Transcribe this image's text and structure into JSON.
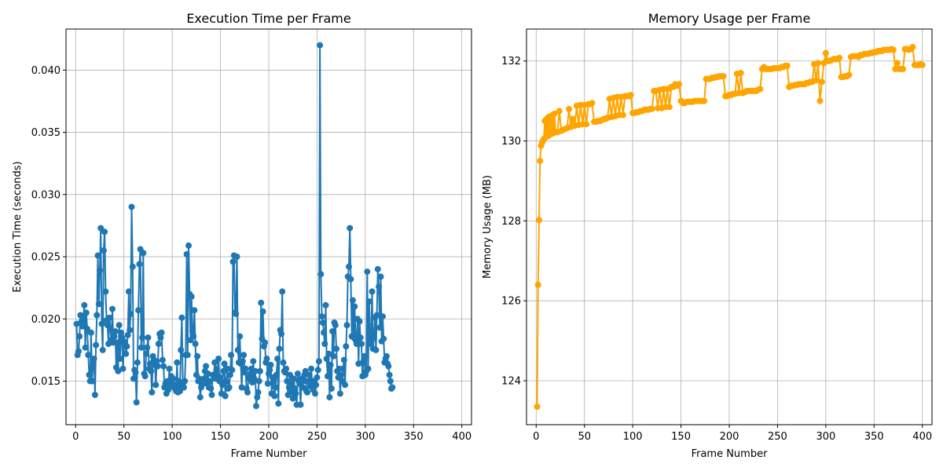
{
  "chart_data": [
    {
      "type": "line",
      "title": "Execution Time per Frame",
      "xlabel": "Frame Number",
      "ylabel": "Execution Time (seconds)",
      "xlim": [
        -10,
        410
      ],
      "ylim": [
        0.0115,
        0.0433
      ],
      "xticks": [
        0,
        50,
        100,
        150,
        200,
        250,
        300,
        350,
        400
      ],
      "yticks": [
        0.015,
        0.02,
        0.025,
        0.03,
        0.035,
        0.04
      ],
      "ytick_labels": [
        "0.015",
        "0.020",
        "0.025",
        "0.030",
        "0.035",
        "0.040"
      ],
      "grid": true,
      "marker": "circle",
      "color": "#1f77b4",
      "x_start": 1,
      "y": [
        0.0196,
        0.0171,
        0.0174,
        0.0186,
        0.0203,
        0.0198,
        0.0194,
        0.0201,
        0.0211,
        0.0177,
        0.0205,
        0.0192,
        0.0171,
        0.0155,
        0.015,
        0.0189,
        0.015,
        0.0165,
        0.0168,
        0.0139,
        0.0179,
        0.0203,
        0.0251,
        0.0212,
        0.0239,
        0.0273,
        0.0196,
        0.0175,
        0.0255,
        0.027,
        0.0222,
        0.0199,
        0.0195,
        0.018,
        0.0201,
        0.0192,
        0.0183,
        0.0208,
        0.0181,
        0.0186,
        0.019,
        0.0161,
        0.0181,
        0.0158,
        0.0195,
        0.0168,
        0.0189,
        0.0185,
        0.016,
        0.0182,
        0.018,
        0.0172,
        0.0178,
        0.0187,
        0.0222,
        0.0191,
        0.0204,
        0.029,
        0.0242,
        0.0152,
        0.0159,
        0.0157,
        0.0133,
        0.0165,
        0.0207,
        0.0244,
        0.0256,
        0.0177,
        0.0185,
        0.0253,
        0.0156,
        0.0154,
        0.0172,
        0.0177,
        0.0185,
        0.016,
        0.0164,
        0.0158,
        0.0141,
        0.017,
        0.0167,
        0.0163,
        0.0147,
        0.0166,
        0.0162,
        0.018,
        0.0188,
        0.0185,
        0.0189,
        0.0167,
        0.0162,
        0.0145,
        0.0148,
        0.014,
        0.015,
        0.0143,
        0.016,
        0.0146,
        0.0154,
        0.0148,
        0.0152,
        0.0145,
        0.0147,
        0.0142,
        0.0165,
        0.0141,
        0.015,
        0.0142,
        0.0175,
        0.0201,
        0.0147,
        0.0145,
        0.015,
        0.0171,
        0.0252,
        0.0171,
        0.0259,
        0.022,
        0.0183,
        0.0218,
        0.019,
        0.0186,
        0.0207,
        0.018,
        0.0155,
        0.017,
        0.015,
        0.0152,
        0.0137,
        0.0145,
        0.015,
        0.0148,
        0.0152,
        0.0158,
        0.0162,
        0.0148,
        0.0156,
        0.0145,
        0.015,
        0.0144,
        0.0139,
        0.0155,
        0.0154,
        0.0165,
        0.0152,
        0.016,
        0.0155,
        0.0168,
        0.015,
        0.0153,
        0.014,
        0.0147,
        0.0158,
        0.0164,
        0.0138,
        0.015,
        0.016,
        0.0144,
        0.0145,
        0.0155,
        0.0171,
        0.0159,
        0.0246,
        0.0251,
        0.0205,
        0.0204,
        0.025,
        0.0175,
        0.0165,
        0.0186,
        0.0164,
        0.0145,
        0.0166,
        0.0171,
        0.0157,
        0.016,
        0.0144,
        0.0141,
        0.0153,
        0.0152,
        0.0156,
        0.016,
        0.0149,
        0.0166,
        0.0152,
        0.0158,
        0.013,
        0.0137,
        0.0141,
        0.015,
        0.0158,
        0.0213,
        0.0184,
        0.0206,
        0.0178,
        0.0181,
        0.0165,
        0.0168,
        0.0148,
        0.0156,
        0.0159,
        0.0163,
        0.014,
        0.0153,
        0.015,
        0.0138,
        0.0145,
        0.0155,
        0.0168,
        0.0132,
        0.0176,
        0.0191,
        0.0188,
        0.0222,
        0.0165,
        0.0158,
        0.0157,
        0.016,
        0.015,
        0.0139,
        0.0145,
        0.0155,
        0.0141,
        0.0148,
        0.0136,
        0.0152,
        0.0144,
        0.014,
        0.0131,
        0.0156,
        0.015,
        0.0148,
        0.0131,
        0.0152,
        0.0145,
        0.015,
        0.0155,
        0.0158,
        0.0142,
        0.0141,
        0.015,
        0.0155,
        0.0146,
        0.016,
        0.0148,
        0.0143,
        0.015,
        0.014,
        0.0147,
        0.0153,
        0.0159,
        0.0166,
        0.042,
        0.0236,
        0.0202,
        0.0197,
        0.0189,
        0.018,
        0.0211,
        0.0168,
        0.0154,
        0.0172,
        0.0137,
        0.0163,
        0.0144,
        0.019,
        0.017,
        0.0197,
        0.0195,
        0.0176,
        0.0158,
        0.0153,
        0.016,
        0.014,
        0.0155,
        0.015,
        0.016,
        0.0167,
        0.0147,
        0.0178,
        0.0195,
        0.0234,
        0.0242,
        0.0273,
        0.0232,
        0.0186,
        0.0215,
        0.0185,
        0.021,
        0.0183,
        0.018,
        0.02,
        0.0164,
        0.0198,
        0.0185,
        0.018,
        0.0154,
        0.0166,
        0.017,
        0.0155,
        0.0158,
        0.0238,
        0.016,
        0.0214,
        0.018,
        0.0182,
        0.0222,
        0.0176,
        0.0185,
        0.0201,
        0.0175,
        0.0203,
        0.024,
        0.0226,
        0.0193,
        0.0234,
        0.0182,
        0.0202,
        0.0184,
        0.0165,
        0.0168,
        0.017,
        0.0164,
        0.0162,
        0.0155,
        0.015,
        0.0144,
        0.0145
      ]
    },
    {
      "type": "line",
      "title": "Memory Usage per Frame",
      "xlabel": "Frame Number",
      "ylabel": "Memory Usage (MB)",
      "xlim": [
        -10,
        410
      ],
      "ylim": [
        122.9,
        132.8
      ],
      "xticks": [
        0,
        50,
        100,
        150,
        200,
        250,
        300,
        350,
        400
      ],
      "yticks": [
        124,
        126,
        128,
        130,
        132
      ],
      "ytick_labels": [
        "124",
        "126",
        "128",
        "130",
        "132"
      ],
      "grid": true,
      "marker": "circle",
      "color": "#ffa500",
      "points": [
        [
          1,
          123.35
        ],
        [
          2,
          126.4
        ],
        [
          3,
          128.02
        ],
        [
          4,
          129.5
        ],
        [
          5,
          129.88
        ],
        [
          6,
          129.95
        ],
        [
          7,
          130.0
        ],
        [
          8,
          130.05
        ],
        [
          9,
          130.5
        ],
        [
          10,
          130.1
        ],
        [
          11,
          130.55
        ],
        [
          12,
          130.12
        ],
        [
          13,
          130.6
        ],
        [
          14,
          130.15
        ],
        [
          15,
          130.62
        ],
        [
          16,
          130.18
        ],
        [
          17,
          130.65
        ],
        [
          18,
          130.2
        ],
        [
          19,
          130.68
        ],
        [
          20,
          130.22
        ],
        [
          22,
          130.22
        ],
        [
          24,
          130.75
        ],
        [
          26,
          130.25
        ],
        [
          28,
          130.28
        ],
        [
          30,
          130.3
        ],
        [
          32,
          130.32
        ],
        [
          34,
          130.8
        ],
        [
          36,
          130.35
        ],
        [
          38,
          130.55
        ],
        [
          40,
          130.38
        ],
        [
          42,
          130.88
        ],
        [
          44,
          130.4
        ],
        [
          46,
          130.9
        ],
        [
          48,
          130.42
        ],
        [
          50,
          130.9
        ],
        [
          52,
          130.42
        ],
        [
          54,
          130.92
        ],
        [
          56,
          130.92
        ],
        [
          58,
          130.95
        ],
        [
          60,
          130.48
        ],
        [
          62,
          130.48
        ],
        [
          64,
          130.5
        ],
        [
          66,
          130.5
        ],
        [
          68,
          130.52
        ],
        [
          70,
          130.55
        ],
        [
          72,
          130.55
        ],
        [
          74,
          130.58
        ],
        [
          76,
          131.05
        ],
        [
          78,
          130.6
        ],
        [
          80,
          131.08
        ],
        [
          82,
          130.62
        ],
        [
          84,
          131.1
        ],
        [
          86,
          130.65
        ],
        [
          88,
          131.1
        ],
        [
          90,
          130.65
        ],
        [
          92,
          131.12
        ],
        [
          94,
          131.12
        ],
        [
          96,
          131.12
        ],
        [
          98,
          131.15
        ],
        [
          100,
          130.7
        ],
        [
          102,
          130.7
        ],
        [
          104,
          130.72
        ],
        [
          106,
          130.72
        ],
        [
          108,
          130.75
        ],
        [
          110,
          130.75
        ],
        [
          112,
          130.78
        ],
        [
          114,
          130.78
        ],
        [
          116,
          130.78
        ],
        [
          118,
          130.8
        ],
        [
          120,
          130.8
        ],
        [
          122,
          131.25
        ],
        [
          124,
          131.25
        ],
        [
          126,
          130.82
        ],
        [
          128,
          131.28
        ],
        [
          130,
          130.82
        ],
        [
          132,
          131.3
        ],
        [
          134,
          130.85
        ],
        [
          136,
          131.3
        ],
        [
          138,
          130.85
        ],
        [
          140,
          131.35
        ],
        [
          142,
          131.35
        ],
        [
          144,
          131.42
        ],
        [
          146,
          131.38
        ],
        [
          148,
          131.42
        ],
        [
          150,
          131.0
        ],
        [
          152,
          130.95
        ],
        [
          154,
          130.95
        ],
        [
          156,
          130.98
        ],
        [
          158,
          130.98
        ],
        [
          160,
          130.98
        ],
        [
          162,
          130.98
        ],
        [
          164,
          131.0
        ],
        [
          166,
          131.0
        ],
        [
          168,
          131.0
        ],
        [
          170,
          131.0
        ],
        [
          172,
          131.0
        ],
        [
          174,
          131.0
        ],
        [
          176,
          131.55
        ],
        [
          178,
          131.55
        ],
        [
          180,
          131.55
        ],
        [
          182,
          131.58
        ],
        [
          184,
          131.58
        ],
        [
          186,
          131.6
        ],
        [
          188,
          131.6
        ],
        [
          190,
          131.62
        ],
        [
          192,
          131.62
        ],
        [
          194,
          131.62
        ],
        [
          196,
          131.12
        ],
        [
          198,
          131.12
        ],
        [
          200,
          131.15
        ],
        [
          202,
          131.15
        ],
        [
          204,
          131.18
        ],
        [
          206,
          131.18
        ],
        [
          208,
          131.68
        ],
        [
          210,
          131.2
        ],
        [
          212,
          131.7
        ],
        [
          214,
          131.2
        ],
        [
          216,
          131.22
        ],
        [
          218,
          131.25
        ],
        [
          220,
          131.25
        ],
        [
          222,
          131.25
        ],
        [
          224,
          131.25
        ],
        [
          226,
          131.25
        ],
        [
          228,
          131.25
        ],
        [
          230,
          131.28
        ],
        [
          232,
          131.3
        ],
        [
          234,
          131.8
        ],
        [
          236,
          131.85
        ],
        [
          238,
          131.8
        ],
        [
          240,
          131.8
        ],
        [
          242,
          131.8
        ],
        [
          244,
          131.8
        ],
        [
          246,
          131.82
        ],
        [
          248,
          131.82
        ],
        [
          250,
          131.82
        ],
        [
          252,
          131.82
        ],
        [
          254,
          131.85
        ],
        [
          256,
          131.85
        ],
        [
          258,
          131.88
        ],
        [
          260,
          131.88
        ],
        [
          262,
          131.35
        ],
        [
          264,
          131.38
        ],
        [
          266,
          131.38
        ],
        [
          268,
          131.4
        ],
        [
          270,
          131.4
        ],
        [
          272,
          131.42
        ],
        [
          274,
          131.42
        ],
        [
          276,
          131.42
        ],
        [
          278,
          131.42
        ],
        [
          280,
          131.45
        ],
        [
          282,
          131.45
        ],
        [
          284,
          131.48
        ],
        [
          286,
          131.48
        ],
        [
          288,
          131.92
        ],
        [
          290,
          131.52
        ],
        [
          292,
          131.95
        ],
        [
          294,
          131.0
        ],
        [
          296,
          131.48
        ],
        [
          298,
          131.95
        ],
        [
          300,
          132.2
        ],
        [
          302,
          132.0
        ],
        [
          304,
          132.0
        ],
        [
          306,
          132.02
        ],
        [
          308,
          132.05
        ],
        [
          310,
          132.05
        ],
        [
          312,
          132.05
        ],
        [
          314,
          132.08
        ],
        [
          316,
          131.6
        ],
        [
          318,
          131.6
        ],
        [
          320,
          131.62
        ],
        [
          322,
          131.62
        ],
        [
          324,
          131.65
        ],
        [
          326,
          132.1
        ],
        [
          328,
          132.12
        ],
        [
          330,
          132.12
        ],
        [
          332,
          132.12
        ],
        [
          334,
          132.1
        ],
        [
          336,
          132.15
        ],
        [
          338,
          132.15
        ],
        [
          340,
          132.18
        ],
        [
          342,
          132.18
        ],
        [
          344,
          132.18
        ],
        [
          346,
          132.2
        ],
        [
          348,
          132.2
        ],
        [
          350,
          132.22
        ],
        [
          352,
          132.22
        ],
        [
          354,
          132.25
        ],
        [
          356,
          132.25
        ],
        [
          358,
          132.25
        ],
        [
          360,
          132.28
        ],
        [
          362,
          132.28
        ],
        [
          364,
          132.28
        ],
        [
          366,
          132.28
        ],
        [
          368,
          132.3
        ],
        [
          370,
          132.28
        ],
        [
          372,
          131.8
        ],
        [
          374,
          131.95
        ],
        [
          376,
          131.8
        ],
        [
          378,
          131.8
        ],
        [
          380,
          131.8
        ],
        [
          382,
          132.3
        ],
        [
          384,
          132.3
        ],
        [
          386,
          132.28
        ],
        [
          388,
          132.3
        ],
        [
          390,
          132.35
        ],
        [
          392,
          131.9
        ],
        [
          394,
          131.9
        ],
        [
          396,
          131.9
        ],
        [
          398,
          131.92
        ],
        [
          400,
          131.9
        ]
      ]
    }
  ]
}
